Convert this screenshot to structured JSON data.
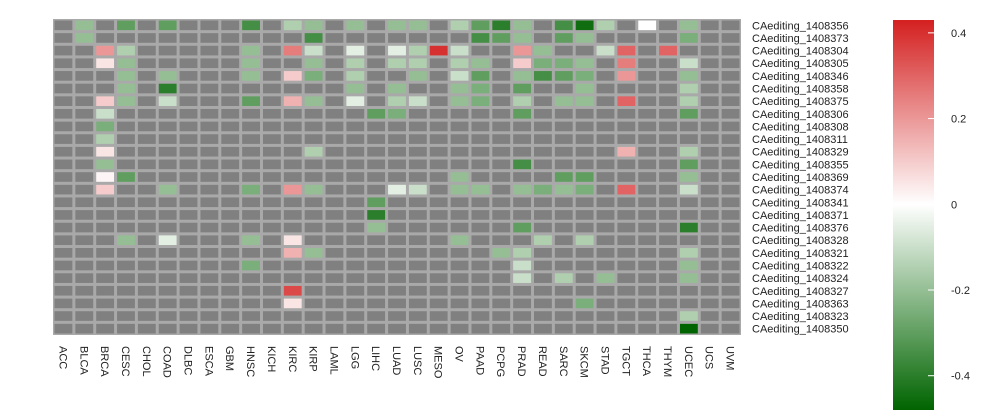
{
  "chart_data": {
    "type": "heatmap",
    "title": "",
    "xlabel": "",
    "ylabel": "",
    "columns": [
      "ACC",
      "BLCA",
      "BRCA",
      "CESC",
      "CHOL",
      "COAD",
      "DLBC",
      "ESCA",
      "GBM",
      "HNSC",
      "KICH",
      "KIRC",
      "KIRP",
      "LAML",
      "LGG",
      "LIHC",
      "LUAD",
      "LUSC",
      "MESO",
      "OV",
      "PAAD",
      "PCPG",
      "PRAD",
      "READ",
      "SARC",
      "SKCM",
      "STAD",
      "TGCT",
      "THCA",
      "THYM",
      "UCEC",
      "UCS",
      "UVM"
    ],
    "rows": [
      "CAediting_1408356",
      "CAediting_1408373",
      "CAediting_1408304",
      "CAediting_1408305",
      "CAediting_1408346",
      "CAediting_1408358",
      "CAediting_1408375",
      "CAediting_1408306",
      "CAediting_1408308",
      "CAediting_1408311",
      "CAediting_1408329",
      "CAediting_1408355",
      "CAediting_1408369",
      "CAediting_1408374",
      "CAediting_1408341",
      "CAediting_1408371",
      "CAediting_1408376",
      "CAediting_1408328",
      "CAediting_1408321",
      "CAediting_1408322",
      "CAediting_1408324",
      "CAediting_1408327",
      "CAediting_1408363",
      "CAediting_1408323",
      "CAediting_1408350"
    ],
    "values": [
      [
        null,
        -0.2,
        null,
        -0.3,
        null,
        -0.3,
        null,
        null,
        null,
        -0.35,
        null,
        -0.15,
        -0.2,
        null,
        -0.2,
        null,
        -0.2,
        -0.2,
        null,
        -0.15,
        -0.3,
        -0.4,
        -0.2,
        null,
        -0.35,
        -0.45,
        -0.15,
        null,
        0.0,
        null,
        -0.2,
        null,
        null
      ],
      [
        null,
        -0.2,
        null,
        null,
        null,
        null,
        null,
        null,
        null,
        null,
        null,
        null,
        -0.35,
        null,
        null,
        null,
        null,
        null,
        null,
        null,
        -0.35,
        -0.3,
        -0.2,
        null,
        -0.3,
        -0.2,
        null,
        null,
        null,
        null,
        -0.25,
        null,
        null
      ],
      [
        null,
        null,
        0.2,
        -0.15,
        null,
        null,
        null,
        null,
        null,
        -0.2,
        null,
        0.25,
        -0.1,
        null,
        -0.05,
        null,
        -0.05,
        -0.15,
        0.4,
        -0.1,
        null,
        null,
        0.2,
        -0.2,
        null,
        null,
        -0.1,
        0.3,
        null,
        0.3,
        null,
        null,
        null
      ],
      [
        null,
        null,
        0.05,
        -0.2,
        null,
        null,
        null,
        null,
        null,
        -0.2,
        null,
        null,
        -0.2,
        null,
        -0.15,
        null,
        -0.15,
        -0.15,
        null,
        -0.15,
        -0.2,
        null,
        0.1,
        -0.25,
        -0.25,
        -0.2,
        null,
        0.25,
        null,
        null,
        -0.1,
        null,
        null
      ],
      [
        null,
        null,
        null,
        -0.2,
        null,
        -0.2,
        null,
        null,
        null,
        -0.2,
        null,
        0.1,
        -0.25,
        null,
        -0.15,
        null,
        null,
        -0.2,
        null,
        -0.1,
        -0.3,
        null,
        -0.2,
        -0.35,
        -0.3,
        -0.25,
        null,
        0.2,
        null,
        null,
        -0.2,
        null,
        null
      ],
      [
        null,
        null,
        null,
        -0.2,
        null,
        -0.4,
        null,
        null,
        null,
        null,
        null,
        null,
        null,
        null,
        -0.2,
        null,
        -0.2,
        null,
        null,
        -0.2,
        -0.25,
        null,
        -0.3,
        null,
        null,
        -0.2,
        null,
        null,
        null,
        null,
        -0.15,
        null,
        null
      ],
      [
        null,
        null,
        0.1,
        -0.2,
        null,
        -0.1,
        null,
        null,
        null,
        -0.3,
        null,
        0.15,
        -0.2,
        null,
        -0.05,
        null,
        -0.15,
        -0.1,
        null,
        -0.2,
        -0.25,
        null,
        -0.15,
        null,
        -0.2,
        -0.2,
        null,
        0.3,
        null,
        null,
        -0.15,
        null,
        null
      ],
      [
        null,
        null,
        -0.1,
        null,
        null,
        null,
        null,
        null,
        null,
        null,
        null,
        null,
        null,
        null,
        null,
        -0.3,
        -0.25,
        null,
        null,
        null,
        null,
        null,
        -0.3,
        null,
        null,
        null,
        null,
        null,
        null,
        null,
        -0.3,
        null,
        null
      ],
      [
        null,
        null,
        -0.25,
        null,
        null,
        null,
        null,
        null,
        null,
        null,
        null,
        null,
        null,
        null,
        null,
        null,
        null,
        null,
        null,
        null,
        null,
        null,
        null,
        null,
        null,
        null,
        null,
        null,
        null,
        null,
        null,
        null,
        null
      ],
      [
        null,
        null,
        -0.15,
        null,
        null,
        null,
        null,
        null,
        null,
        null,
        null,
        null,
        null,
        null,
        null,
        null,
        null,
        null,
        null,
        null,
        null,
        null,
        null,
        null,
        null,
        null,
        null,
        null,
        null,
        null,
        null,
        null,
        null
      ],
      [
        null,
        null,
        0.05,
        null,
        null,
        null,
        null,
        null,
        null,
        null,
        null,
        null,
        -0.15,
        null,
        null,
        null,
        null,
        null,
        null,
        null,
        null,
        null,
        null,
        null,
        null,
        null,
        null,
        0.15,
        null,
        null,
        -0.15,
        null,
        null
      ],
      [
        null,
        null,
        -0.2,
        null,
        null,
        null,
        null,
        null,
        null,
        null,
        null,
        null,
        null,
        null,
        null,
        null,
        null,
        null,
        null,
        null,
        null,
        null,
        -0.35,
        null,
        null,
        null,
        null,
        null,
        null,
        null,
        -0.3,
        null,
        null
      ],
      [
        null,
        null,
        0.02,
        -0.3,
        null,
        null,
        null,
        null,
        null,
        null,
        null,
        null,
        null,
        null,
        null,
        null,
        null,
        null,
        null,
        -0.2,
        null,
        null,
        null,
        null,
        -0.3,
        -0.3,
        null,
        null,
        null,
        null,
        -0.2,
        null,
        null
      ],
      [
        null,
        null,
        0.1,
        null,
        null,
        -0.2,
        null,
        null,
        null,
        -0.25,
        null,
        0.2,
        -0.2,
        null,
        null,
        null,
        -0.05,
        -0.1,
        null,
        -0.2,
        -0.2,
        null,
        -0.2,
        -0.25,
        -0.2,
        -0.25,
        null,
        0.3,
        null,
        null,
        -0.1,
        null,
        null
      ],
      [
        null,
        null,
        null,
        null,
        null,
        null,
        null,
        null,
        null,
        null,
        null,
        null,
        null,
        null,
        null,
        -0.3,
        null,
        null,
        null,
        null,
        null,
        null,
        null,
        null,
        null,
        null,
        null,
        null,
        null,
        null,
        null,
        null,
        null
      ],
      [
        null,
        null,
        null,
        null,
        null,
        null,
        null,
        null,
        null,
        null,
        null,
        null,
        null,
        null,
        null,
        -0.4,
        null,
        null,
        null,
        null,
        null,
        null,
        null,
        null,
        null,
        null,
        null,
        null,
        null,
        null,
        null,
        null,
        null
      ],
      [
        null,
        null,
        null,
        null,
        null,
        null,
        null,
        null,
        null,
        null,
        null,
        null,
        null,
        null,
        null,
        -0.2,
        null,
        null,
        null,
        null,
        null,
        null,
        -0.3,
        null,
        null,
        null,
        null,
        null,
        null,
        null,
        -0.4,
        null,
        null
      ],
      [
        null,
        null,
        null,
        -0.2,
        null,
        -0.05,
        null,
        null,
        null,
        -0.2,
        null,
        0.05,
        null,
        null,
        null,
        null,
        null,
        null,
        null,
        -0.2,
        null,
        null,
        null,
        -0.15,
        null,
        -0.15,
        null,
        null,
        null,
        null,
        null,
        null,
        null
      ],
      [
        null,
        null,
        null,
        null,
        null,
        null,
        null,
        null,
        null,
        null,
        null,
        0.15,
        -0.2,
        null,
        null,
        null,
        null,
        null,
        null,
        null,
        null,
        -0.2,
        -0.15,
        null,
        null,
        null,
        null,
        null,
        null,
        null,
        -0.15,
        null,
        null
      ],
      [
        null,
        null,
        null,
        null,
        null,
        null,
        null,
        null,
        null,
        -0.25,
        null,
        null,
        null,
        null,
        null,
        null,
        null,
        null,
        null,
        null,
        null,
        null,
        -0.1,
        null,
        null,
        null,
        null,
        null,
        null,
        null,
        -0.2,
        null,
        null
      ],
      [
        null,
        null,
        null,
        null,
        null,
        null,
        null,
        null,
        null,
        null,
        null,
        null,
        null,
        null,
        null,
        null,
        null,
        null,
        null,
        null,
        null,
        null,
        -0.1,
        null,
        -0.15,
        null,
        -0.2,
        null,
        null,
        null,
        -0.2,
        null,
        null
      ],
      [
        null,
        null,
        null,
        null,
        null,
        null,
        null,
        null,
        null,
        null,
        null,
        0.35,
        null,
        null,
        null,
        null,
        null,
        null,
        null,
        null,
        null,
        null,
        null,
        null,
        null,
        null,
        null,
        null,
        null,
        null,
        null,
        null,
        null
      ],
      [
        null,
        null,
        null,
        null,
        null,
        null,
        null,
        null,
        null,
        null,
        null,
        0.05,
        null,
        null,
        null,
        null,
        null,
        null,
        null,
        null,
        null,
        null,
        null,
        null,
        null,
        -0.25,
        null,
        null,
        null,
        null,
        null,
        null,
        null
      ],
      [
        null,
        null,
        null,
        null,
        null,
        null,
        null,
        null,
        null,
        null,
        null,
        null,
        null,
        null,
        null,
        null,
        null,
        null,
        null,
        null,
        null,
        null,
        null,
        null,
        null,
        null,
        null,
        null,
        null,
        null,
        -0.15,
        null,
        null
      ],
      [
        null,
        null,
        null,
        null,
        null,
        null,
        null,
        null,
        null,
        null,
        null,
        null,
        null,
        null,
        null,
        null,
        null,
        null,
        null,
        null,
        null,
        null,
        null,
        null,
        null,
        null,
        null,
        null,
        null,
        null,
        -0.48,
        null,
        null
      ]
    ],
    "color_scale": {
      "min": -0.48,
      "mid": 0,
      "max": 0.43,
      "low_color": "#006400",
      "mid_color": "#ffffff",
      "high_color": "#d42020",
      "na_color": "#808080"
    },
    "legend": {
      "position": "right",
      "ticks": [
        0.4,
        0.2,
        0,
        -0.2,
        -0.4
      ],
      "tick_labels": [
        "0.4",
        "0.2",
        "0",
        "-0.2",
        "-0.4"
      ]
    }
  }
}
